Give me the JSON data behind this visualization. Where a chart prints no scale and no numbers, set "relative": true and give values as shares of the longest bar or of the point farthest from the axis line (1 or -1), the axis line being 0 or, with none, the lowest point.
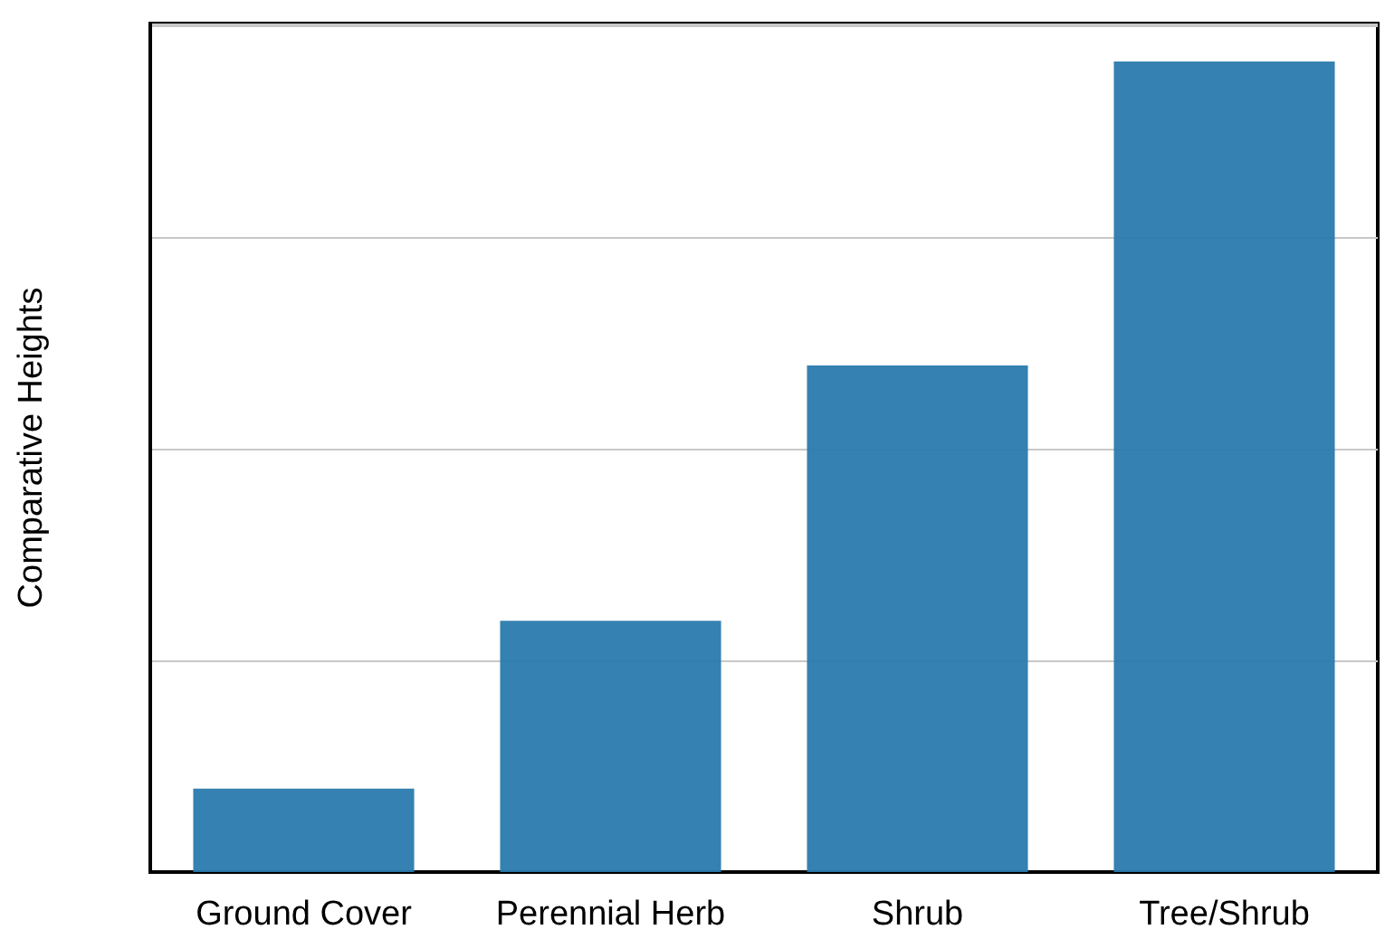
{
  "chart_data": {
    "type": "bar",
    "ylabel": "Comparative Heights",
    "categories": [
      "Ground Cover",
      "Perennial Herb",
      "Shrub",
      "Tree/Shrub"
    ],
    "values": [
      0.103,
      0.31,
      0.625,
      1
    ],
    "color": "#2a7aad",
    "relative": true,
    "grid": "y"
  }
}
